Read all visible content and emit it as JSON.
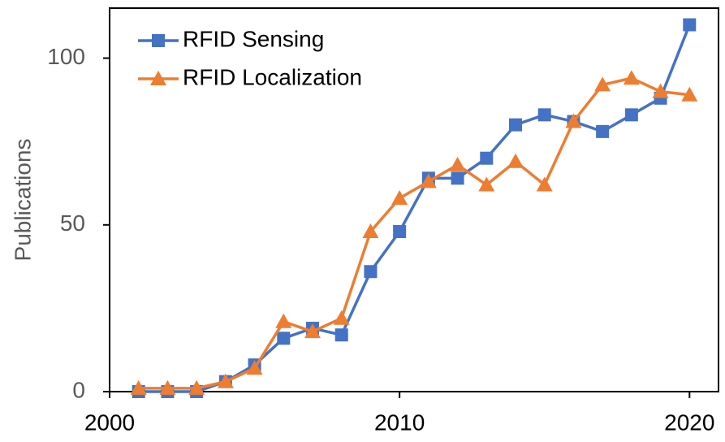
{
  "chart_data": {
    "type": "line",
    "y_label": "Publications",
    "x": [
      2001,
      2002,
      2003,
      2004,
      2005,
      2006,
      2007,
      2008,
      2009,
      2010,
      2011,
      2012,
      2013,
      2014,
      2015,
      2016,
      2017,
      2018,
      2019,
      2020
    ],
    "series": [
      {
        "name": "RFID Sensing",
        "color": "#4472c4",
        "marker": "square",
        "values": [
          0,
          0,
          0,
          3,
          8,
          16,
          19,
          17,
          36,
          48,
          64,
          64,
          70,
          80,
          83,
          81,
          78,
          83,
          88,
          110
        ]
      },
      {
        "name": "RFID Localization",
        "color": "#ed7d31",
        "marker": "triangle",
        "values": [
          1,
          1,
          1,
          3,
          7,
          21,
          18,
          22,
          48,
          58,
          63,
          68,
          62,
          69,
          62,
          81,
          92,
          94,
          90,
          89
        ]
      }
    ],
    "xlim": [
      2000,
      2021
    ],
    "xticks": [
      2000,
      2010,
      2020
    ],
    "ylim": [
      0,
      115
    ],
    "yticks": [
      0,
      50,
      100
    ],
    "grid": false,
    "legend": "upper left"
  }
}
